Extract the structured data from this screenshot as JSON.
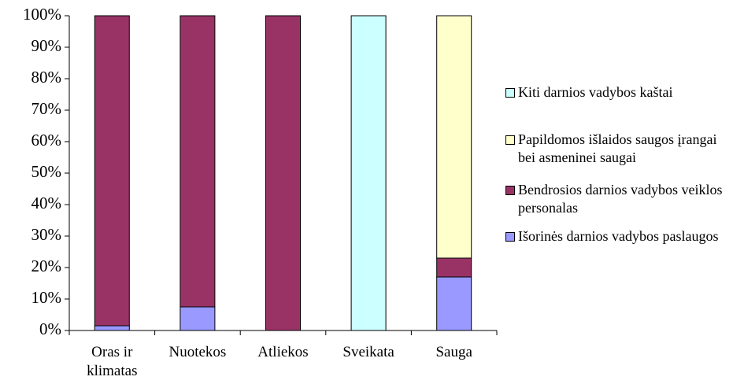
{
  "chart_data": {
    "type": "bar",
    "stacked": true,
    "categories": [
      "Oras ir klimatas",
      "Nuotekos",
      "Atliekos",
      "Sveikata",
      "Sauga"
    ],
    "series": [
      {
        "name": "Išorinės darnios vadybos paslaugos",
        "color": "#9999ff",
        "values": [
          1.5,
          7.5,
          0,
          0,
          17
        ]
      },
      {
        "name": "Bendrosios darnios vadybos veiklos personalas",
        "color": "#993366",
        "values": [
          98.5,
          92.5,
          100,
          0,
          6
        ]
      },
      {
        "name": "Papildomos išlaidos saugos įrangai bei asmeninei saugai",
        "color": "#ffffcc",
        "values": [
          0,
          0,
          0,
          0,
          77
        ]
      },
      {
        "name": "Kiti darnios vadybos kaštai",
        "color": "#ccffff",
        "values": [
          0,
          0,
          0,
          100,
          0
        ]
      }
    ],
    "ylim": [
      0,
      100
    ],
    "yticks": [
      {
        "value": 0,
        "label": "0%"
      },
      {
        "value": 10,
        "label": "10%"
      },
      {
        "value": 20,
        "label": "20%"
      },
      {
        "value": 30,
        "label": "30%"
      },
      {
        "value": 40,
        "label": "40%"
      },
      {
        "value": 50,
        "label": "50%"
      },
      {
        "value": 60,
        "label": "60%"
      },
      {
        "value": 70,
        "label": "70%"
      },
      {
        "value": 80,
        "label": "80%"
      },
      {
        "value": 90,
        "label": "90%"
      },
      {
        "value": 100,
        "label": "100%"
      }
    ],
    "legend": "right",
    "grid": false
  }
}
